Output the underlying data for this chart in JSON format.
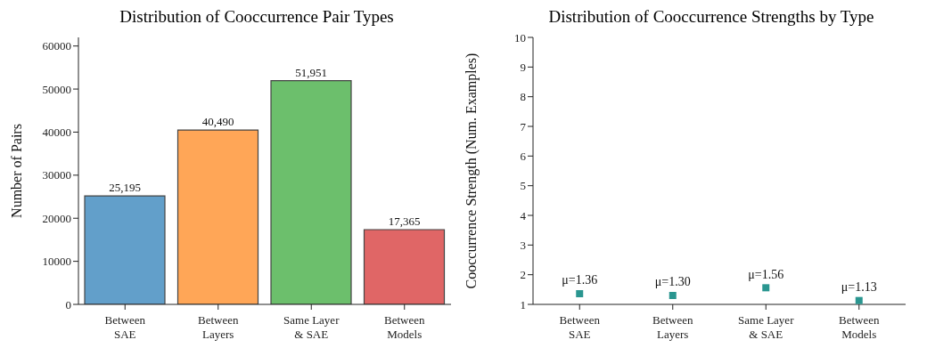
{
  "chart_data": [
    {
      "type": "bar",
      "title": "Distribution of Cooccurrence Pair Types",
      "ylabel": "Number of Pairs",
      "categories": [
        "Between\nSAE",
        "Between\nLayers",
        "Same Layer\n& SAE",
        "Between\nModels"
      ],
      "values": [
        25195,
        40490,
        51951,
        17365
      ],
      "colors": [
        "#629fca",
        "#ffa657",
        "#6cbf6c",
        "#e06666"
      ],
      "value_labels": [
        "25,195",
        "40,490",
        "51,951",
        "17,365"
      ],
      "ylim": [
        0,
        62000
      ],
      "yticks": [
        0,
        10000,
        20000,
        30000,
        40000,
        50000,
        60000
      ],
      "grid": false,
      "legend": false
    },
    {
      "type": "scatter",
      "title": "Distribution of Cooccurrence Strengths by Type",
      "ylabel": "Cooccurrence Strength (Num. Examples)",
      "categories": [
        "Between\nSAE",
        "Between\nLayers",
        "Same Layer\n& SAE",
        "Between\nModels"
      ],
      "values": [
        1.36,
        1.3,
        1.56,
        1.13
      ],
      "color": "#2a9690",
      "marker": "square",
      "value_labels": [
        "μ=1.36",
        "μ=1.30",
        "μ=1.56",
        "μ=1.13"
      ],
      "ylim": [
        1,
        10
      ],
      "yticks": [
        1,
        2,
        3,
        4,
        5,
        6,
        7,
        8,
        9,
        10
      ],
      "grid": false,
      "legend": false
    }
  ]
}
